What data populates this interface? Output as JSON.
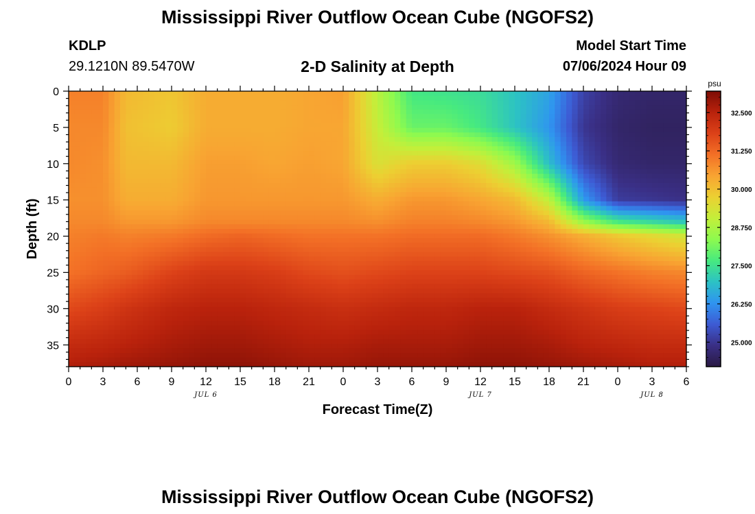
{
  "page": {
    "title": "Mississippi River Outflow Ocean Cube (NGOFS2)",
    "footer_title": "Mississippi River Outflow Ocean Cube (NGOFS2)"
  },
  "header": {
    "station_id": "KDLP",
    "station_coords": "29.1210N  89.5470W",
    "plot_subtitle": "2-D Salinity at Depth",
    "model_start_label": "Model Start Time",
    "model_start_value": "07/06/2024 Hour 09"
  },
  "colorbar": {
    "unit": "psu",
    "tick_labels": [
      "32.500",
      "31.250",
      "30.000",
      "28.750",
      "27.500",
      "26.250",
      "25.000"
    ],
    "tick_values": [
      32.5,
      31.25,
      30.0,
      28.75,
      27.5,
      26.25,
      25.0
    ],
    "range": [
      24.2,
      33.2
    ],
    "colors": [
      "#2a1a44",
      "#3a2f85",
      "#3d5bd4",
      "#2f94f0",
      "#2cc2c4",
      "#47ea7f",
      "#8dfa4f",
      "#c3ef3a",
      "#ecd032",
      "#f8a432",
      "#f37026",
      "#dc4118",
      "#b9220c",
      "#7d0d05"
    ]
  },
  "chart_data": {
    "type": "heatmap",
    "title": "2-D Salinity at Depth",
    "xlabel": "Forecast Time(Z)",
    "ylabel": "Depth (ft)",
    "x_unit": "forecast hour since 07/06/2024 00Z",
    "xlim": [
      0,
      54
    ],
    "ylim": [
      38,
      0
    ],
    "x_tick_labels": [
      "0",
      "3",
      "6",
      "9",
      "12",
      "15",
      "18",
      "21",
      "0",
      "3",
      "6",
      "9",
      "12",
      "15",
      "18",
      "21",
      "0",
      "3",
      "6"
    ],
    "x_tick_values": [
      0,
      3,
      6,
      9,
      12,
      15,
      18,
      21,
      24,
      27,
      30,
      33,
      36,
      39,
      42,
      45,
      48,
      51,
      54
    ],
    "y_tick_labels": [
      "0",
      "5",
      "10",
      "15",
      "20",
      "25",
      "30",
      "35"
    ],
    "y_tick_values": [
      0,
      5,
      10,
      15,
      20,
      25,
      30,
      35
    ],
    "date_labels": [
      {
        "text": "JUL 6",
        "x": 12
      },
      {
        "text": "JUL 7",
        "x": 36
      },
      {
        "text": "JUL 8",
        "x": 51
      }
    ],
    "z_unit": "psu",
    "depth_profile_depths": [
      0,
      5,
      10,
      15,
      18,
      20,
      25,
      30,
      35,
      38
    ],
    "time_profiles": [
      {
        "x": 0,
        "salinity": [
          30.9,
          30.8,
          30.8,
          30.7,
          30.8,
          30.9,
          31.1,
          31.7,
          32.3,
          32.6
        ]
      },
      {
        "x": 3,
        "salinity": [
          30.9,
          30.8,
          30.7,
          30.7,
          30.8,
          31.0,
          31.3,
          31.9,
          32.4,
          32.7
        ]
      },
      {
        "x": 5,
        "salinity": [
          30.1,
          30.0,
          30.1,
          30.3,
          30.6,
          30.9,
          31.4,
          32.1,
          32.5,
          32.8
        ]
      },
      {
        "x": 9,
        "salinity": [
          29.9,
          29.8,
          30.1,
          30.3,
          30.6,
          31.0,
          31.8,
          32.4,
          32.7,
          32.9
        ]
      },
      {
        "x": 12,
        "salinity": [
          30.3,
          30.3,
          30.5,
          30.6,
          30.8,
          31.2,
          32.0,
          32.5,
          32.8,
          33.0
        ]
      },
      {
        "x": 15,
        "salinity": [
          30.3,
          30.3,
          30.5,
          30.6,
          30.8,
          31.3,
          32.0,
          32.5,
          32.8,
          33.0
        ]
      },
      {
        "x": 18,
        "salinity": [
          30.3,
          30.3,
          30.4,
          30.6,
          30.8,
          31.2,
          31.9,
          32.4,
          32.7,
          32.9
        ]
      },
      {
        "x": 21,
        "salinity": [
          30.4,
          30.4,
          30.5,
          30.6,
          30.8,
          31.1,
          31.7,
          32.3,
          32.6,
          32.8
        ]
      },
      {
        "x": 24,
        "salinity": [
          30.5,
          30.4,
          30.4,
          30.6,
          30.8,
          31.1,
          31.6,
          32.2,
          32.6,
          32.8
        ]
      },
      {
        "x": 27,
        "salinity": [
          28.9,
          29.1,
          29.4,
          30.3,
          30.7,
          31.1,
          31.7,
          32.3,
          32.7,
          32.9
        ]
      },
      {
        "x": 30,
        "salinity": [
          27.6,
          28.0,
          29.8,
          30.6,
          30.9,
          31.2,
          31.8,
          32.4,
          32.7,
          32.9
        ]
      },
      {
        "x": 33,
        "salinity": [
          27.5,
          28.0,
          29.8,
          30.6,
          30.9,
          31.2,
          31.8,
          32.4,
          32.7,
          32.9
        ]
      },
      {
        "x": 36,
        "salinity": [
          27.4,
          27.6,
          29.5,
          30.4,
          30.8,
          31.2,
          31.8,
          32.5,
          32.8,
          33.0
        ]
      },
      {
        "x": 39,
        "salinity": [
          27.0,
          27.0,
          28.6,
          30.1,
          30.6,
          31.0,
          31.7,
          32.5,
          32.8,
          33.0
        ]
      },
      {
        "x": 42,
        "salinity": [
          26.5,
          26.3,
          26.9,
          29.0,
          30.1,
          30.7,
          31.6,
          32.3,
          32.7,
          32.9
        ]
      },
      {
        "x": 45,
        "salinity": [
          25.2,
          25.0,
          25.3,
          26.4,
          28.5,
          30.3,
          31.3,
          32.1,
          32.5,
          32.8
        ]
      },
      {
        "x": 48,
        "salinity": [
          24.7,
          24.6,
          24.7,
          25.1,
          27.6,
          29.9,
          31.1,
          31.9,
          32.4,
          32.7
        ]
      },
      {
        "x": 51,
        "salinity": [
          24.6,
          24.5,
          24.6,
          25.0,
          27.3,
          29.6,
          30.9,
          31.8,
          32.3,
          32.6
        ]
      },
      {
        "x": 54,
        "salinity": [
          24.6,
          24.5,
          24.6,
          24.9,
          27.0,
          29.3,
          30.8,
          31.7,
          32.3,
          32.6
        ]
      }
    ]
  }
}
